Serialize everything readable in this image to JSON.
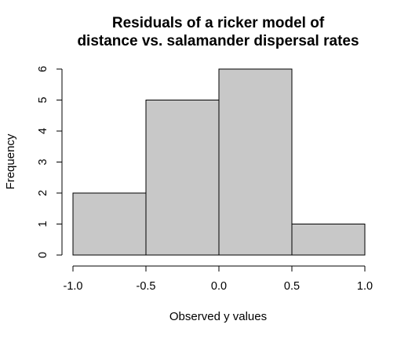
{
  "chart_data": {
    "type": "bar",
    "title": [
      "Residuals of a ricker model of",
      "distance vs. salamander dispersal rates"
    ],
    "xlabel": "Observed y values",
    "ylabel": "Frequency",
    "bins": [
      {
        "start": -1.0,
        "end": -0.5,
        "count": 2
      },
      {
        "start": -0.5,
        "end": 0.0,
        "count": 5
      },
      {
        "start": 0.0,
        "end": 0.5,
        "count": 6
      },
      {
        "start": 0.5,
        "end": 1.0,
        "count": 1
      }
    ],
    "xlim": [
      -1.0,
      1.0
    ],
    "ylim": [
      0,
      6
    ],
    "x_ticks": [
      -1.0,
      -0.5,
      0.0,
      0.5,
      1.0
    ],
    "x_tick_labels": [
      "-1.0",
      "-0.5",
      "0.0",
      "0.5",
      "1.0"
    ],
    "y_ticks": [
      0,
      1,
      2,
      3,
      4,
      5,
      6
    ],
    "y_tick_labels": [
      "0",
      "1",
      "2",
      "3",
      "4",
      "5",
      "6"
    ],
    "bar_color": "#c8c8c8",
    "grid": false,
    "legend": "none"
  }
}
